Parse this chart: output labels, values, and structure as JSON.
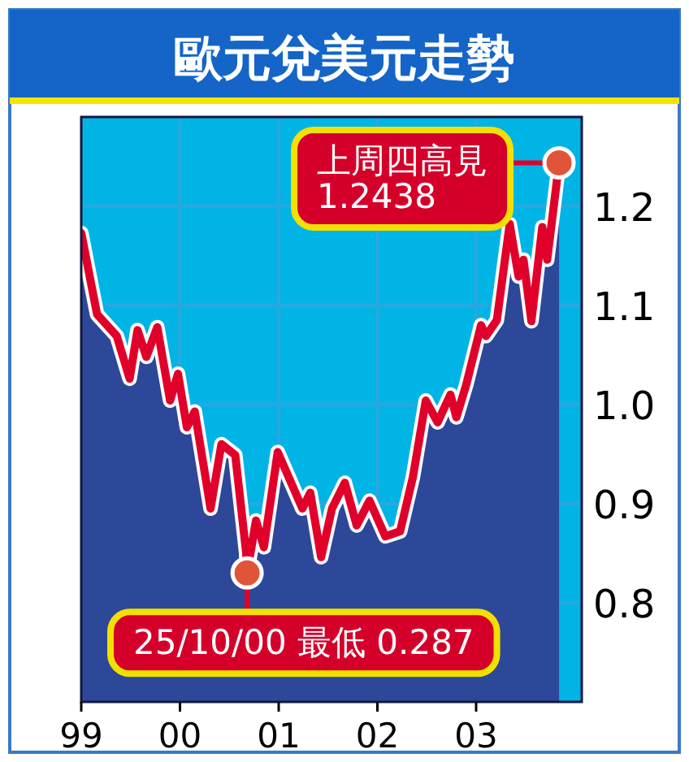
{
  "chart_data": {
    "type": "area",
    "title": "歐元兌美元走勢",
    "x": [
      1999.0,
      1999.16,
      1999.36,
      1999.49,
      1999.57,
      1999.66,
      1999.77,
      1999.9,
      1999.98,
      2000.07,
      2000.15,
      2000.31,
      2000.42,
      2000.56,
      2000.67,
      2000.68,
      2000.77,
      2000.85,
      2000.99,
      2001.1,
      2001.24,
      2001.32,
      2001.43,
      2001.54,
      2001.67,
      2001.79,
      2001.92,
      2002.08,
      2002.23,
      2002.36,
      2002.49,
      2002.61,
      2002.74,
      2002.8,
      2002.9,
      2003.05,
      2003.1,
      2003.21,
      2003.34,
      2003.43,
      2003.48,
      2003.56,
      2003.67,
      2003.72,
      2003.84
    ],
    "series": [
      {
        "type": "area",
        "color": "#2d4899",
        "values": [
          1.173,
          1.091,
          1.069,
          1.026,
          1.075,
          1.048,
          1.078,
          1.004,
          1.031,
          0.977,
          0.993,
          0.895,
          0.96,
          0.949,
          0.851,
          0.83,
          0.883,
          0.856,
          0.952,
          0.927,
          0.895,
          0.911,
          0.846,
          0.895,
          0.921,
          0.878,
          0.903,
          0.867,
          0.872,
          0.927,
          1.004,
          0.982,
          1.01,
          0.987,
          1.02,
          1.08,
          1.069,
          1.085,
          1.182,
          1.129,
          1.146,
          1.084,
          1.179,
          1.146,
          1.2438
        ]
      },
      {
        "type": "line",
        "color": "#e0002a",
        "values": [
          1.173,
          1.091,
          1.069,
          1.026,
          1.075,
          1.048,
          1.078,
          1.004,
          1.031,
          0.977,
          0.993,
          0.895,
          0.96,
          0.949,
          0.851,
          0.83,
          0.883,
          0.856,
          0.952,
          0.927,
          0.895,
          0.911,
          0.846,
          0.895,
          0.921,
          0.878,
          0.903,
          0.867,
          0.872,
          0.927,
          1.004,
          0.982,
          1.01,
          0.987,
          1.02,
          1.08,
          1.069,
          1.085,
          1.182,
          1.129,
          1.146,
          1.084,
          1.179,
          1.146,
          1.2438
        ]
      }
    ],
    "xlim": [
      1999,
      2004.07
    ],
    "ylim": [
      0.7,
      1.29
    ],
    "xticks": [
      {
        "value": 1999,
        "label": "99"
      },
      {
        "value": 2000,
        "label": "00"
      },
      {
        "value": 2001,
        "label": "01"
      },
      {
        "value": 2002,
        "label": "02"
      },
      {
        "value": 2003,
        "label": "03"
      }
    ],
    "yticks": [
      0.8,
      0.9,
      {
        "value": 1.0,
        "label": "1.0"
      },
      1.1,
      1.2
    ],
    "grid": true,
    "annotations": [
      {
        "text": "上周四高見\n1.2438",
        "x": 2003.84,
        "y": 1.2438
      },
      {
        "text": "25/10/00 最低 0.287",
        "x": 2000.68,
        "y": 0.83
      }
    ]
  }
}
